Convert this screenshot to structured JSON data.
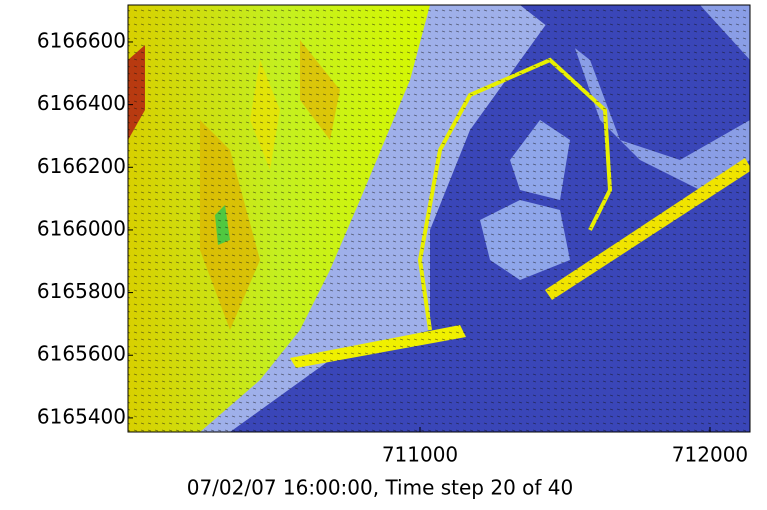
{
  "chart_data": {
    "type": "map",
    "xlabel": "07/02/07 16:00:00, Time step 20 of 40",
    "xlim": [
      709993,
      712138
    ],
    "xticks": [
      711000,
      712000
    ],
    "ylim": [
      6165355,
      6166718
    ],
    "yticks": [
      6165400,
      6165600,
      6165800,
      6166000,
      6166200,
      6166400,
      6166600
    ]
  }
}
